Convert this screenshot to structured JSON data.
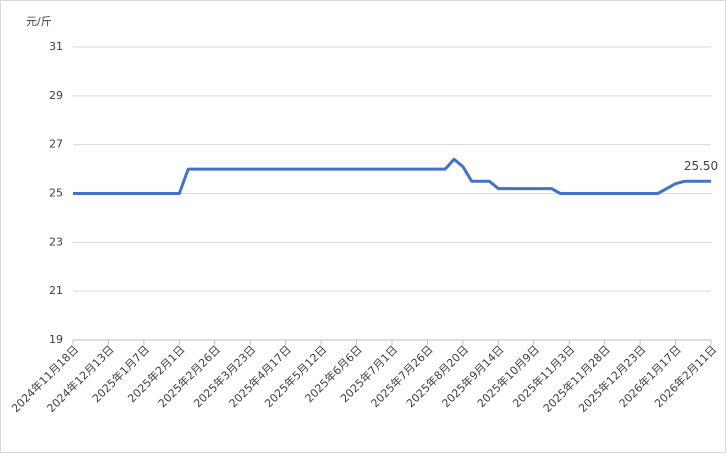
{
  "chart_data": {
    "type": "line",
    "y_axis_label": "元/斤",
    "categories": [
      "2024年11月18日",
      null,
      null,
      null,
      "2024年12月13日",
      null,
      null,
      null,
      "2025年1月7日",
      null,
      null,
      null,
      "2025年2月1日",
      null,
      null,
      null,
      "2025年2月26日",
      null,
      null,
      null,
      "2025年3月23日",
      null,
      null,
      null,
      "2025年4月17日",
      null,
      null,
      null,
      "2025年5月12日",
      null,
      null,
      null,
      "2025年6月6日",
      null,
      null,
      null,
      "2025年7月1日",
      null,
      null,
      null,
      "2025年7月26日",
      null,
      null,
      null,
      "2025年8月20日",
      null,
      null,
      null,
      "2025年9月14日",
      null,
      null,
      null,
      "2025年10月9日",
      null,
      null,
      null,
      "2025年11月3日",
      null,
      null,
      null,
      "2025年11月28日",
      null,
      null,
      null,
      "2025年12月23日",
      null,
      null,
      null,
      "2026年1月17日",
      null,
      null,
      null,
      "2026年2月11日"
    ],
    "series": [
      {
        "color": "#4472c4",
        "values": [
          25,
          25,
          25,
          25,
          25,
          25,
          25,
          25,
          25,
          25,
          25,
          25,
          25,
          26,
          26,
          26,
          26,
          26,
          26,
          26,
          26,
          26,
          26,
          26,
          26,
          26,
          26,
          26,
          26,
          26,
          26,
          26,
          26,
          26,
          26,
          26,
          26,
          26,
          26,
          26,
          26,
          26,
          26,
          26.4,
          26.1,
          25.5,
          25.5,
          25.5,
          25.2,
          25.2,
          25.2,
          25.2,
          25.2,
          25.2,
          25.2,
          25,
          25,
          25,
          25,
          25,
          25,
          25,
          25,
          25,
          25,
          25,
          25,
          25.2,
          25.4,
          25.5,
          25.5,
          25.5,
          25.5
        ],
        "value_labels": [
          null,
          null,
          null,
          null,
          null,
          null,
          null,
          null,
          null,
          null,
          null,
          null,
          null,
          null,
          null,
          null,
          null,
          null,
          null,
          null,
          null,
          null,
          null,
          null,
          null,
          null,
          null,
          null,
          null,
          null,
          null,
          null,
          null,
          null,
          null,
          null,
          null,
          null,
          null,
          null,
          null,
          null,
          null,
          null,
          null,
          null,
          null,
          null,
          null,
          null,
          null,
          null,
          null,
          null,
          null,
          null,
          null,
          null,
          null,
          null,
          null,
          null,
          null,
          null,
          null,
          null,
          null,
          null,
          null,
          null,
          null,
          null,
          "25.50"
        ]
      }
    ],
    "ylim": [
      19,
      31
    ],
    "yticks": [
      19,
      21,
      23,
      25,
      27,
      29,
      31
    ],
    "grid": true
  }
}
